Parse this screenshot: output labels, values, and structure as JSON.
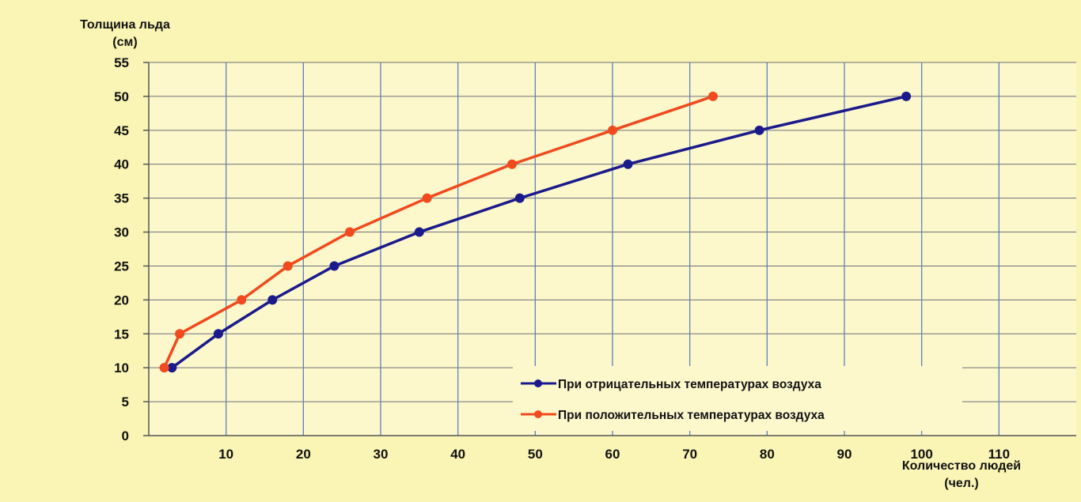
{
  "chart_data": {
    "type": "line",
    "ylabel_line1": "Толщина льда",
    "ylabel_line2": "(см)",
    "xlabel_line1": "Количество людей",
    "xlabel_line2": "(чел.)",
    "x_ticks": [
      "10",
      "20",
      "30",
      "40",
      "50",
      "60",
      "70",
      "80",
      "90",
      "100",
      "110"
    ],
    "y_ticks": [
      "0",
      "5",
      "10",
      "15",
      "20",
      "25",
      "30",
      "35",
      "40",
      "45",
      "50",
      "55"
    ],
    "xlim": [
      0,
      120
    ],
    "ylim": [
      0,
      55
    ],
    "grid": true,
    "legend_position": "bottom-right",
    "series": [
      {
        "name": "При отрицательных температурах воздуха",
        "color": "#1a1a8c",
        "x": [
          3,
          9,
          16,
          24,
          35,
          48,
          62,
          79,
          98
        ],
        "y": [
          10,
          15,
          20,
          25,
          30,
          35,
          40,
          45,
          50
        ]
      },
      {
        "name": "При положительных температурах воздуха",
        "color": "#f04a1e",
        "x": [
          2,
          4,
          12,
          18,
          26,
          36,
          47,
          60,
          73
        ],
        "y": [
          10,
          15,
          20,
          25,
          30,
          35,
          40,
          45,
          50
        ]
      }
    ]
  }
}
